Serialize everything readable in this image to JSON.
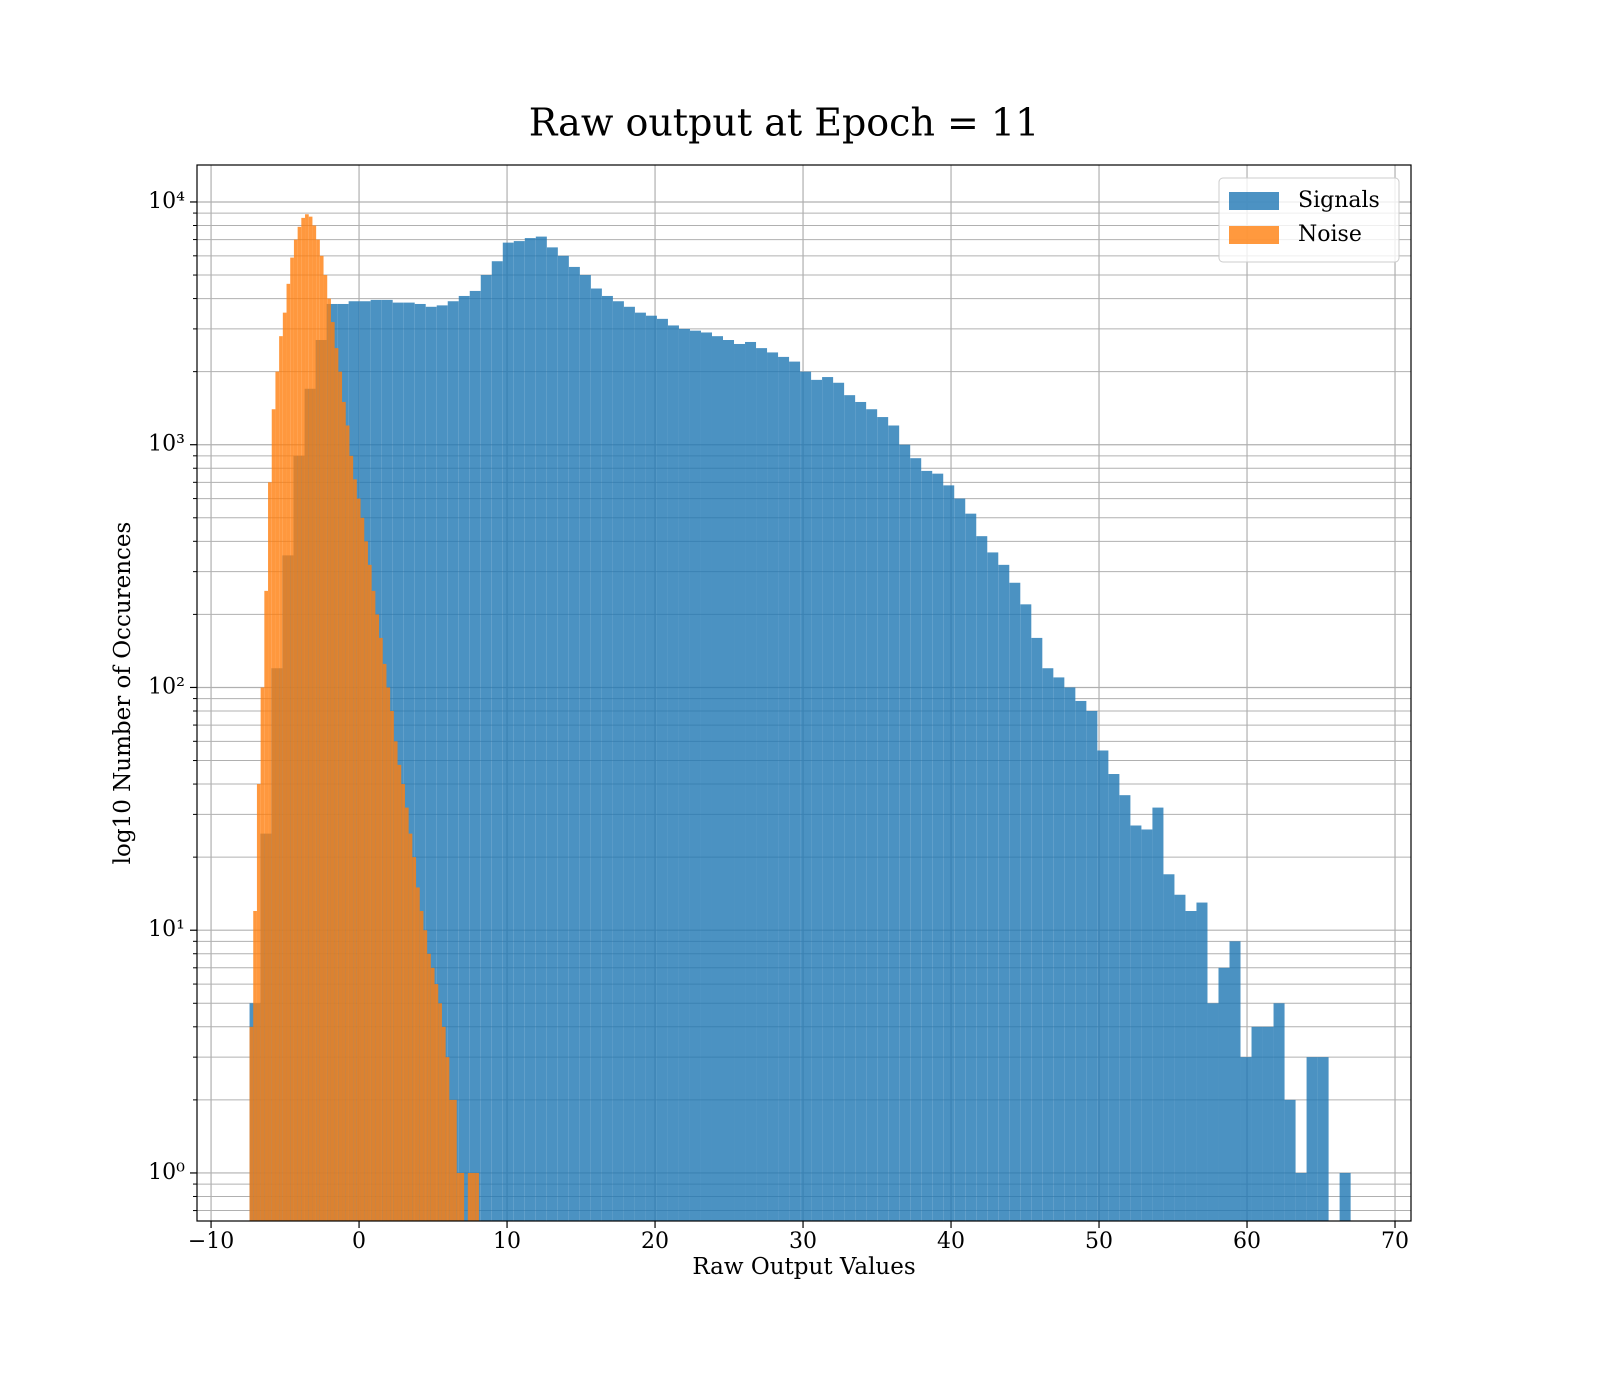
{
  "chart_data": {
    "type": "histogram",
    "title": "Raw output at Epoch = 11",
    "xlabel": "Raw Output Values",
    "ylabel": "log10 Number of Occurences",
    "xlim": [
      -10.95,
      71.08
    ],
    "xticks": [
      {
        "value": -10,
        "label": "−10"
      },
      0,
      10,
      20,
      30,
      40,
      50,
      60,
      70
    ],
    "ylim": [
      0.634,
      14200
    ],
    "yscale": "log",
    "yticks": [
      {
        "value": 1,
        "label": "10⁰"
      },
      {
        "value": 10,
        "label": "10¹"
      },
      {
        "value": 100,
        "label": "10²"
      },
      {
        "value": 1000,
        "label": "10³"
      },
      {
        "value": 10000,
        "label": "10⁴"
      }
    ],
    "grid": true,
    "legend": "upper right",
    "opacity": 0.8,
    "series": [
      {
        "name": "Signals",
        "color": "#1f77b4",
        "bins": [
          -7.4,
          -6.656,
          -5.912,
          -5.168,
          -4.424,
          -3.68,
          -2.936,
          -2.192,
          -1.448,
          -0.704,
          0.04,
          0.784,
          1.528,
          2.272,
          3.016,
          3.76,
          4.504,
          5.248,
          5.992,
          6.736,
          7.48,
          8.224,
          8.968,
          9.712,
          10.456,
          11.2,
          11.944,
          12.688,
          13.432,
          14.176,
          14.92,
          15.664,
          16.408,
          17.152,
          17.896,
          18.64,
          19.384,
          20.128,
          20.872,
          21.616,
          22.36,
          23.104,
          23.848,
          24.592,
          25.336,
          26.08,
          26.824,
          27.568,
          28.312,
          29.056,
          29.8,
          30.544,
          31.288,
          32.032,
          32.776,
          33.52,
          34.264,
          35.008,
          35.752,
          36.496,
          37.24,
          37.984,
          38.728,
          39.472,
          40.216,
          40.96,
          41.704,
          42.448,
          43.192,
          43.936,
          44.68,
          45.424,
          46.168,
          46.912,
          47.656,
          48.4,
          49.144,
          49.888,
          50.632,
          51.376,
          52.12,
          52.864,
          53.608,
          54.352,
          55.096,
          55.84,
          56.584,
          57.328,
          58.072,
          58.816,
          59.56,
          60.304,
          61.048,
          61.792,
          62.536,
          63.28,
          64.024,
          64.768,
          65.512,
          66.256,
          67.0
        ],
        "values": [
          5,
          25,
          120,
          350,
          900,
          1700,
          2700,
          3800,
          3800,
          3900,
          3900,
          3950,
          3950,
          3850,
          3850,
          3800,
          3700,
          3750,
          3900,
          4100,
          4300,
          5000,
          5700,
          6800,
          6900,
          7100,
          7200,
          6500,
          6000,
          5400,
          5000,
          4400,
          4100,
          3900,
          3700,
          3500,
          3400,
          3300,
          3100,
          3000,
          2950,
          2900,
          2800,
          2700,
          2600,
          2650,
          2500,
          2400,
          2300,
          2200,
          2000,
          1850,
          1900,
          1800,
          1600,
          1500,
          1400,
          1300,
          1200,
          1000,
          880,
          780,
          760,
          680,
          600,
          520,
          420,
          360,
          320,
          270,
          220,
          160,
          120,
          110,
          100,
          88,
          80,
          55,
          44,
          36,
          27,
          26,
          32,
          17,
          14,
          12,
          13,
          5,
          7,
          9,
          3,
          4,
          4,
          5,
          2,
          1,
          3,
          3,
          0,
          1
        ]
      },
      {
        "name": "Noise",
        "color": "#ff7f0e",
        "bins": [
          -7.4,
          -7.15,
          -6.9,
          -6.65,
          -6.4,
          -6.15,
          -5.9,
          -5.65,
          -5.4,
          -5.15,
          -4.9,
          -4.65,
          -4.4,
          -4.15,
          -3.9,
          -3.65,
          -3.4,
          -3.15,
          -2.9,
          -2.65,
          -2.4,
          -2.15,
          -1.9,
          -1.65,
          -1.4,
          -1.15,
          -0.9,
          -0.65,
          -0.4,
          -0.15,
          0.1,
          0.35,
          0.6,
          0.85,
          1.1,
          1.35,
          1.6,
          1.85,
          2.1,
          2.35,
          2.6,
          2.85,
          3.1,
          3.35,
          3.6,
          3.85,
          4.1,
          4.35,
          4.6,
          4.85,
          5.1,
          5.35,
          5.6,
          5.85,
          6.1,
          6.35,
          6.6,
          6.85,
          7.1,
          7.35,
          7.6,
          7.85,
          8.1
        ],
        "values": [
          4,
          12,
          40,
          100,
          250,
          700,
          1400,
          2000,
          2800,
          3500,
          4600,
          5900,
          7000,
          7900,
          8600,
          8900,
          8700,
          8000,
          7000,
          6000,
          5000,
          4000,
          3200,
          2500,
          2000,
          1500,
          1200,
          900,
          720,
          600,
          500,
          400,
          320,
          250,
          200,
          160,
          125,
          100,
          80,
          60,
          48,
          40,
          32,
          25,
          20,
          15,
          12,
          10,
          8,
          7,
          6,
          5,
          4,
          3,
          2,
          2,
          1,
          1,
          0,
          1,
          1,
          1
        ]
      }
    ]
  }
}
